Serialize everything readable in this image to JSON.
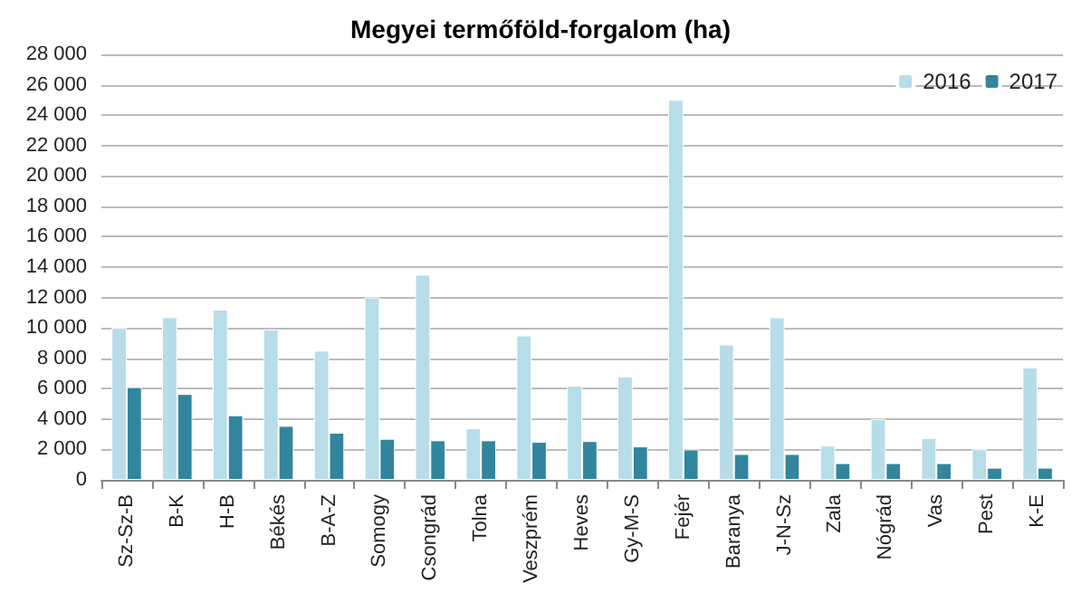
{
  "chart_data": {
    "type": "bar",
    "title": "Megyei termőföld-forgalom (ha)",
    "categories": [
      "Sz-Sz-B",
      "B-K",
      "H-B",
      "Békés",
      "B-A-Z",
      "Somogy",
      "Csongrád",
      "Tolna",
      "Veszprém",
      "Heves",
      "Gy-M-S",
      "Fejér",
      "Baranya",
      "J-N-Sz",
      "Zala",
      "Nógrád",
      "Vas",
      "Pest",
      "K-E"
    ],
    "series": [
      {
        "name": "2016",
        "color": "#b7dde8",
        "values": [
          10000,
          10700,
          11200,
          9900,
          8500,
          12000,
          13500,
          3400,
          9500,
          6200,
          6800,
          25000,
          8900,
          10700,
          2250,
          4000,
          2750,
          2000,
          7400
        ]
      },
      {
        "name": "2017",
        "color": "#31859c",
        "values": [
          6100,
          5650,
          4250,
          3550,
          3100,
          2700,
          2600,
          2600,
          2500,
          2550,
          2200,
          2000,
          1700,
          1700,
          1100,
          1100,
          1100,
          800,
          800
        ]
      }
    ],
    "ylim": [
      0,
      28000
    ],
    "yticks": [
      {
        "value": 0,
        "label": "0"
      },
      {
        "value": 2000,
        "label": "2 000"
      },
      {
        "value": 4000,
        "label": "4 000"
      },
      {
        "value": 6000,
        "label": "6 000"
      },
      {
        "value": 8000,
        "label": "8 000"
      },
      {
        "value": 10000,
        "label": "10 000"
      },
      {
        "value": 12000,
        "label": "12 000"
      },
      {
        "value": 14000,
        "label": "14 000"
      },
      {
        "value": 16000,
        "label": "16 000"
      },
      {
        "value": 18000,
        "label": "18 000"
      },
      {
        "value": 20000,
        "label": "20 000"
      },
      {
        "value": 22000,
        "label": "22 000"
      },
      {
        "value": 24000,
        "label": "24 000"
      },
      {
        "value": 26000,
        "label": "26 000"
      },
      {
        "value": 28000,
        "label": "28 000"
      }
    ],
    "grid": "y",
    "legend": "top right"
  }
}
